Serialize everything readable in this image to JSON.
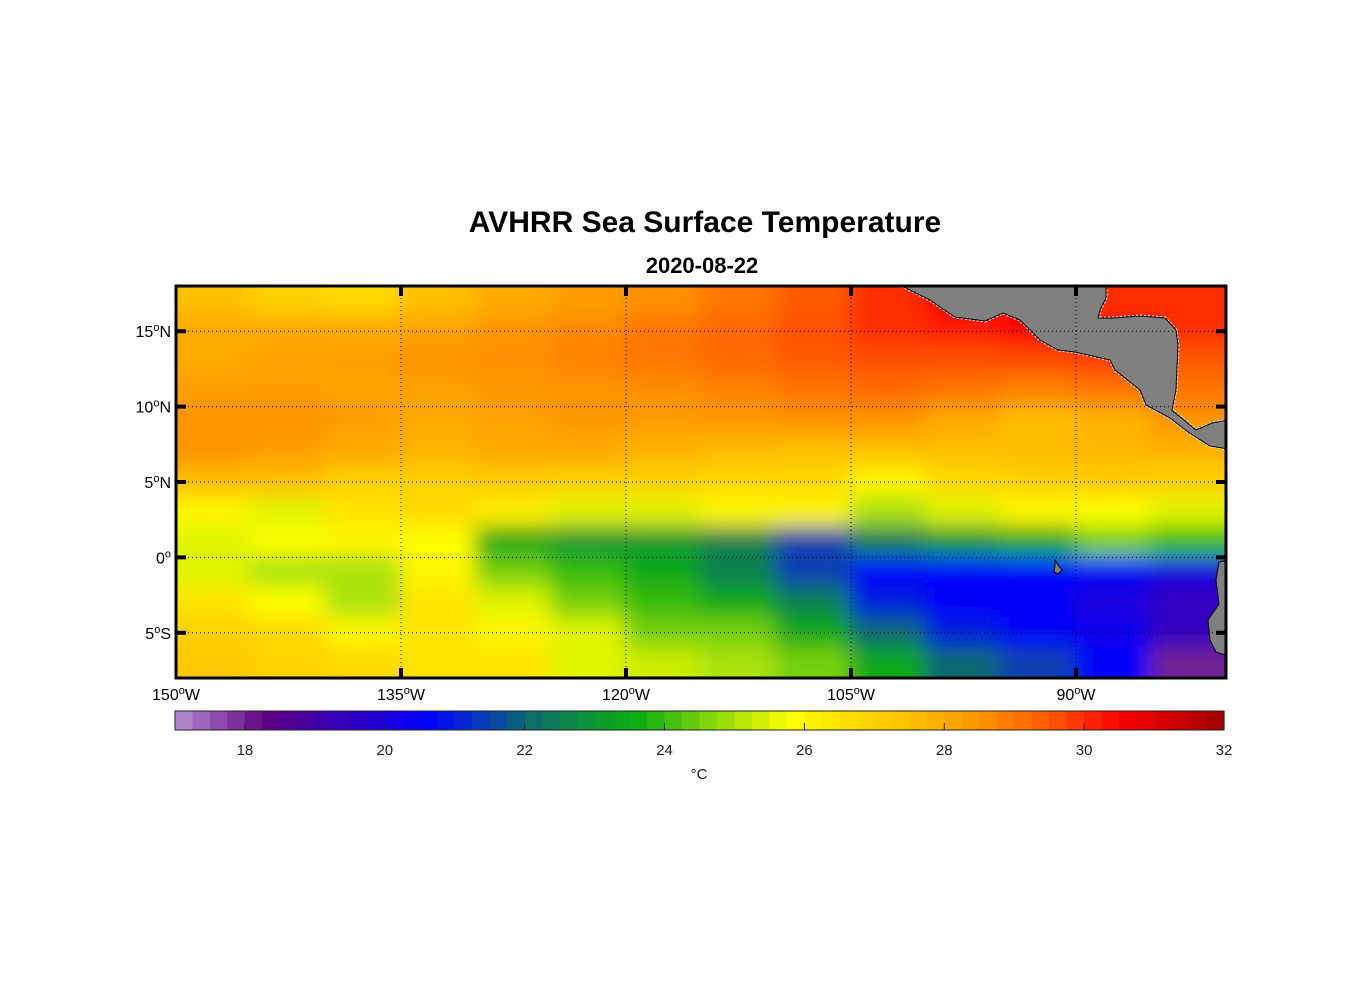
{
  "chart_data": {
    "type": "heatmap",
    "title": "AVHRR Sea Surface Temperature",
    "subtitle": "2020-08-22",
    "lon_range": [
      -150,
      -80
    ],
    "lat_range": [
      -8,
      18
    ],
    "grid": true,
    "x_ticks": [
      {
        "value": -150,
        "deg": "150",
        "hemi": "W"
      },
      {
        "value": -135,
        "deg": "135",
        "hemi": "W"
      },
      {
        "value": -120,
        "deg": "120",
        "hemi": "W"
      },
      {
        "value": -105,
        "deg": "105",
        "hemi": "W"
      },
      {
        "value": -90,
        "deg": "90",
        "hemi": "W"
      }
    ],
    "y_ticks": [
      {
        "value": 15,
        "deg": "15",
        "hemi": "N"
      },
      {
        "value": 10,
        "deg": "10",
        "hemi": "N"
      },
      {
        "value": 5,
        "deg": "5",
        "hemi": "N"
      },
      {
        "value": 0,
        "deg": "0",
        "hemi": ""
      },
      {
        "value": -5,
        "deg": "5",
        "hemi": "S"
      }
    ],
    "colorbar": {
      "range": [
        17,
        32
      ],
      "ticks": [
        18,
        20,
        22,
        24,
        26,
        28,
        30,
        32
      ],
      "tick_labels": [
        "18",
        "20",
        "22",
        "24",
        "26",
        "28",
        "30",
        "32"
      ],
      "unit": "°C",
      "stops": [
        [
          17,
          "#b990d6"
        ],
        [
          18.3,
          "#5c0080"
        ],
        [
          19.5,
          "#3000c0"
        ],
        [
          20.6,
          "#0000ff"
        ],
        [
          21.5,
          "#0a40b0"
        ],
        [
          22,
          "#0c6870"
        ],
        [
          23,
          "#0c9830"
        ],
        [
          23.7,
          "#10b010"
        ],
        [
          24.6,
          "#80d40a"
        ],
        [
          25.8,
          "#ffff00"
        ],
        [
          26.6,
          "#ffe000"
        ],
        [
          27.5,
          "#ffc000"
        ],
        [
          28.5,
          "#ff9400"
        ],
        [
          29.5,
          "#ff5a00"
        ],
        [
          30.5,
          "#ff0000"
        ],
        [
          32,
          "#a00000"
        ]
      ]
    },
    "sst_grid": {
      "lon_step": 5,
      "lat_step": 2,
      "lon_start": -150,
      "lat_start": 18,
      "values": [
        [
          27.5,
          27,
          26.8,
          27.5,
          28,
          28.3,
          28.6,
          29,
          29.5,
          30,
          30.5,
          30.5,
          30,
          30
        ],
        [
          28,
          28,
          28,
          28.2,
          28.5,
          28.7,
          29,
          29.3,
          29.6,
          30,
          30.2,
          30.5,
          30.3,
          30
        ],
        [
          28,
          28.2,
          28.3,
          28.5,
          28.6,
          28.8,
          29,
          29.2,
          29.5,
          29.6,
          29.6,
          29.7,
          29.8,
          29.5
        ],
        [
          28.3,
          28.3,
          28.2,
          28.2,
          28.4,
          28.5,
          28.6,
          28.8,
          29,
          29.2,
          29,
          28.8,
          29,
          29
        ],
        [
          28.5,
          28.5,
          28.3,
          28,
          28.2,
          28.4,
          28.3,
          28.4,
          28.5,
          28.5,
          28,
          27.5,
          27.8,
          28.5
        ],
        [
          28.5,
          28.3,
          28,
          27.8,
          28,
          28,
          27.8,
          27.6,
          27.5,
          27.5,
          27.5,
          27.6,
          27.7,
          27.8
        ],
        [
          27.5,
          27.5,
          27,
          27,
          27.2,
          27,
          27,
          26.8,
          26.8,
          26,
          26.8,
          27,
          27.2,
          27
        ],
        [
          26,
          25.5,
          26.5,
          26.8,
          26.2,
          25.5,
          25.5,
          26,
          26,
          25,
          25.5,
          26,
          25.8,
          25.5
        ],
        [
          25.5,
          25.8,
          26,
          25.8,
          23.5,
          23,
          23,
          22.5,
          21.5,
          22.5,
          23,
          23.5,
          24.5,
          24
        ],
        [
          25.5,
          25,
          25,
          26,
          24.5,
          24,
          23.5,
          22.5,
          21.5,
          20.5,
          20.5,
          20.5,
          20.5,
          20
        ],
        [
          26.5,
          25.8,
          25,
          26.5,
          25.5,
          24.5,
          24,
          23.5,
          22.5,
          21,
          20.5,
          20.5,
          20,
          19.5
        ],
        [
          27,
          26.8,
          26,
          26.5,
          26,
          25.5,
          24.5,
          24.5,
          23.5,
          22,
          21,
          20.5,
          20.3,
          19.5
        ],
        [
          27.3,
          27,
          26.8,
          26.5,
          26.5,
          25.5,
          25.3,
          25,
          24.5,
          23.5,
          22,
          21.5,
          20.5,
          18
        ]
      ]
    }
  }
}
